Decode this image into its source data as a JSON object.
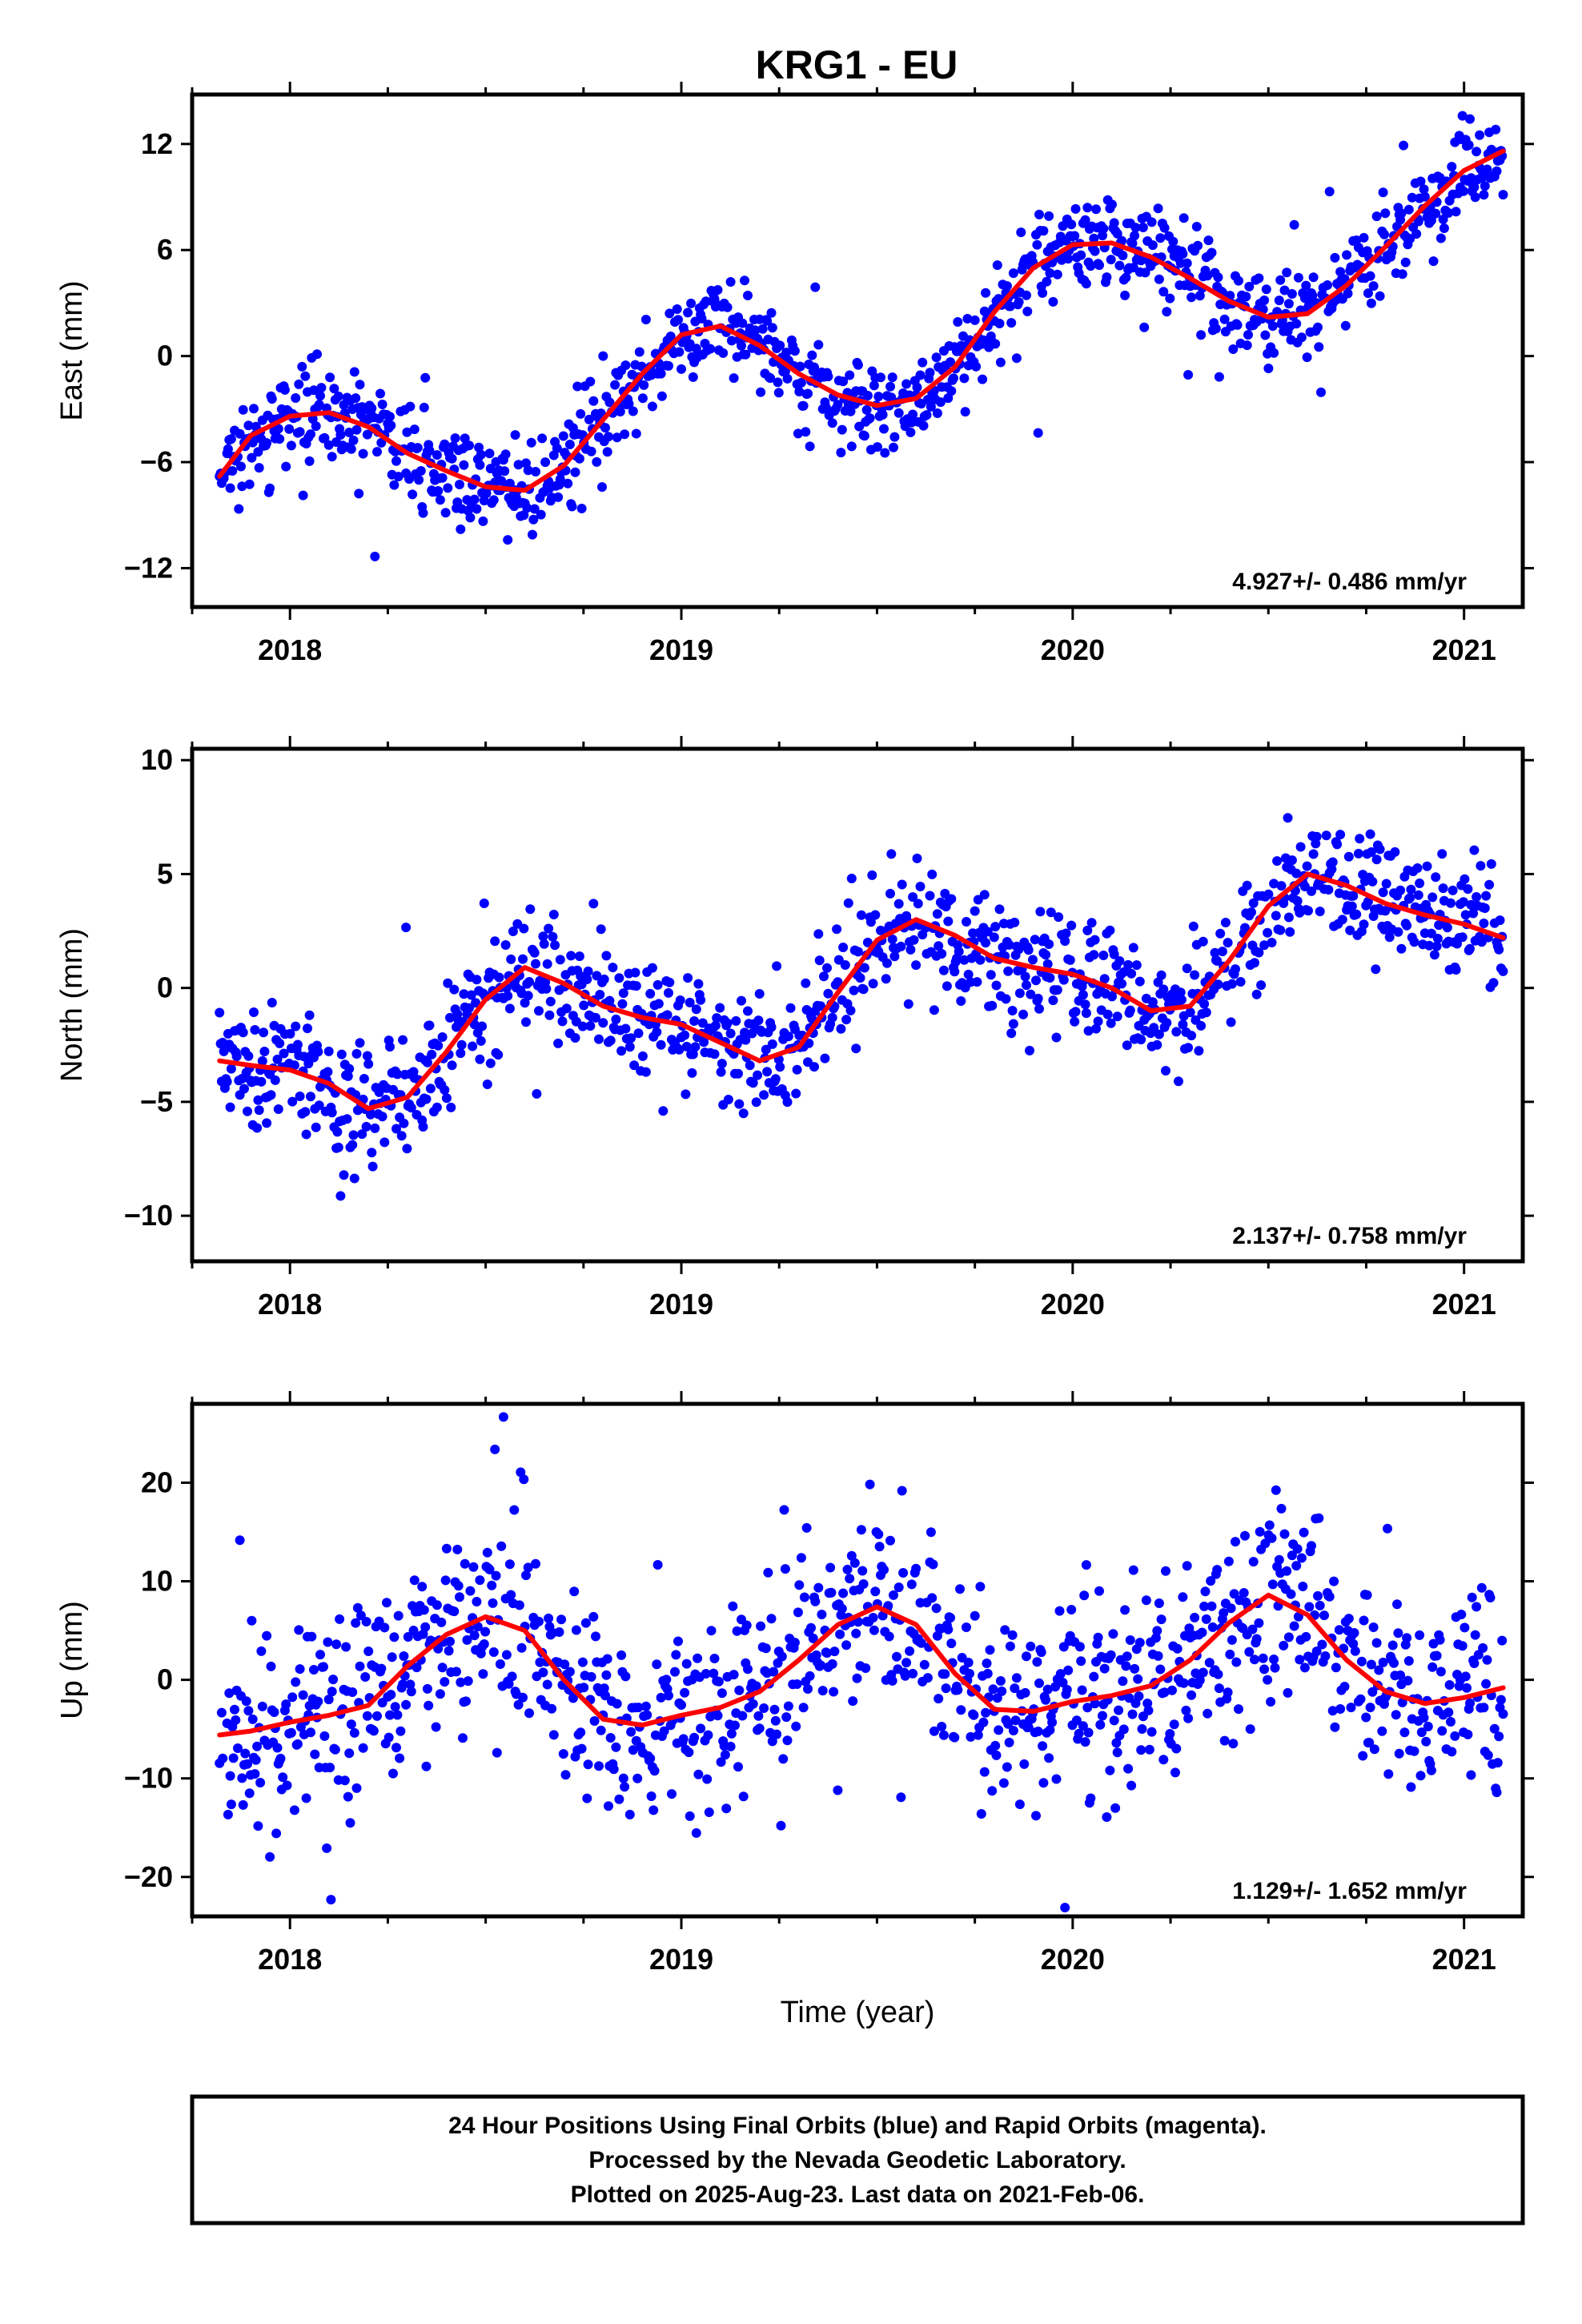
{
  "title": "KRG1 - EU",
  "footer": {
    "lines": [
      "24 Hour Positions Using Final Orbits (blue) and Rapid Orbits (magenta).",
      "Processed by the Nevada Geodetic Laboratory.",
      "Plotted on 2025-Aug-23. Last data on 2021-Feb-06."
    ]
  },
  "colors": {
    "points": "#0000ff",
    "fit": "#ff0000",
    "frame": "#000000"
  },
  "chart_data": [
    {
      "type": "scatter",
      "component": "east",
      "xlabel": "",
      "ylabel": "East (mm)",
      "xlim": [
        2017.75,
        2021.15
      ],
      "ylim": [
        -14.2,
        14.8
      ],
      "xticks": [
        2018,
        2019,
        2020,
        2021
      ],
      "yticks": [
        -12,
        -6,
        0,
        6,
        12
      ],
      "rate_label": "4.927+/- 0.486 mm/yr",
      "grid": false,
      "series": [
        {
          "style": "points",
          "x": [
            2017.82,
            2017.9,
            2018.0,
            2018.1,
            2018.2,
            2018.3,
            2018.4,
            2018.5,
            2018.6,
            2018.7,
            2018.8,
            2018.9,
            2019.0,
            2019.1,
            2019.2,
            2019.3,
            2019.4,
            2019.5,
            2019.6,
            2019.7,
            2019.8,
            2019.9,
            2020.0,
            2020.1,
            2020.2,
            2020.3,
            2020.4,
            2020.5,
            2020.6,
            2020.7,
            2020.8,
            2020.9,
            2021.0,
            2021.1
          ],
          "y": [
            -6.8,
            -4.5,
            -3.4,
            -3.2,
            -4.0,
            -5.5,
            -6.5,
            -7.4,
            -7.6,
            -6.2,
            -3.6,
            -1.0,
            1.2,
            1.7,
            0.6,
            -1.0,
            -2.2,
            -2.8,
            -2.4,
            -0.6,
            2.5,
            5.0,
            6.3,
            6.4,
            5.6,
            4.4,
            3.1,
            2.2,
            2.4,
            4.0,
            6.2,
            8.5,
            10.5,
            11.6
          ]
        },
        {
          "style": "line",
          "x": [
            2017.82,
            2017.9,
            2018.0,
            2018.1,
            2018.2,
            2018.3,
            2018.4,
            2018.5,
            2018.6,
            2018.7,
            2018.8,
            2018.9,
            2019.0,
            2019.1,
            2019.2,
            2019.3,
            2019.4,
            2019.5,
            2019.6,
            2019.7,
            2019.8,
            2019.9,
            2020.0,
            2020.1,
            2020.2,
            2020.3,
            2020.4,
            2020.5,
            2020.6,
            2020.7,
            2020.8,
            2020.9,
            2021.0,
            2021.1
          ],
          "y": [
            -6.8,
            -4.5,
            -3.4,
            -3.2,
            -4.0,
            -5.5,
            -6.5,
            -7.4,
            -7.6,
            -6.2,
            -3.6,
            -1.0,
            1.2,
            1.7,
            0.6,
            -1.0,
            -2.2,
            -2.8,
            -2.4,
            -0.6,
            2.5,
            5.0,
            6.3,
            6.4,
            5.6,
            4.4,
            3.1,
            2.2,
            2.4,
            4.0,
            6.2,
            8.5,
            10.5,
            11.6
          ]
        }
      ],
      "scatter_spread": 1.3
    },
    {
      "type": "scatter",
      "component": "north",
      "xlabel": "",
      "ylabel": "North (mm)",
      "xlim": [
        2017.75,
        2021.15
      ],
      "ylim": [
        -12,
        10.5
      ],
      "xticks": [
        2018,
        2019,
        2020,
        2021
      ],
      "yticks": [
        -10,
        -5,
        0,
        5,
        10
      ],
      "rate_label": "2.137+/- 0.758 mm/yr",
      "grid": false,
      "series": [
        {
          "style": "points",
          "x": [
            2017.82,
            2017.9,
            2018.0,
            2018.1,
            2018.2,
            2018.3,
            2018.4,
            2018.5,
            2018.6,
            2018.7,
            2018.8,
            2018.9,
            2019.0,
            2019.1,
            2019.2,
            2019.3,
            2019.4,
            2019.5,
            2019.6,
            2019.7,
            2019.8,
            2019.9,
            2020.0,
            2020.1,
            2020.2,
            2020.3,
            2020.4,
            2020.5,
            2020.6,
            2020.7,
            2020.8,
            2020.9,
            2021.0,
            2021.1
          ],
          "y": [
            -3.2,
            -3.4,
            -3.6,
            -4.2,
            -5.3,
            -4.8,
            -2.8,
            -0.5,
            0.9,
            0.2,
            -0.8,
            -1.3,
            -1.6,
            -2.4,
            -3.2,
            -2.6,
            -0.2,
            2.1,
            3.0,
            2.3,
            1.3,
            0.9,
            0.6,
            0.0,
            -1.0,
            -0.8,
            1.2,
            3.6,
            5.0,
            4.5,
            3.7,
            3.2,
            2.8,
            2.2
          ]
        },
        {
          "style": "line",
          "x": [
            2017.82,
            2017.9,
            2018.0,
            2018.1,
            2018.2,
            2018.3,
            2018.4,
            2018.5,
            2018.6,
            2018.7,
            2018.8,
            2018.9,
            2019.0,
            2019.1,
            2019.2,
            2019.3,
            2019.4,
            2019.5,
            2019.6,
            2019.7,
            2019.8,
            2019.9,
            2020.0,
            2020.1,
            2020.2,
            2020.3,
            2020.4,
            2020.5,
            2020.6,
            2020.7,
            2020.8,
            2020.9,
            2021.0,
            2021.1
          ],
          "y": [
            -3.2,
            -3.4,
            -3.6,
            -4.2,
            -5.3,
            -4.8,
            -2.8,
            -0.5,
            0.9,
            0.2,
            -0.8,
            -1.3,
            -1.6,
            -2.4,
            -3.2,
            -2.6,
            -0.2,
            2.1,
            3.0,
            2.3,
            1.3,
            0.9,
            0.6,
            0.0,
            -1.0,
            -0.8,
            1.2,
            3.6,
            5.0,
            4.5,
            3.7,
            3.2,
            2.8,
            2.2
          ]
        }
      ],
      "scatter_spread": 1.3
    },
    {
      "type": "scatter",
      "component": "up",
      "xlabel": "Time (year)",
      "ylabel": "Up (mm)",
      "xlim": [
        2017.75,
        2021.15
      ],
      "ylim": [
        -24,
        28
      ],
      "xticks": [
        2018,
        2019,
        2020,
        2021
      ],
      "yticks": [
        -20,
        -10,
        0,
        10,
        20
      ],
      "rate_label": "1.129+/- 1.652 mm/yr",
      "grid": false,
      "series": [
        {
          "style": "points",
          "x": [
            2017.82,
            2017.9,
            2018.0,
            2018.1,
            2018.2,
            2018.3,
            2018.4,
            2018.5,
            2018.6,
            2018.7,
            2018.8,
            2018.9,
            2019.0,
            2019.1,
            2019.2,
            2019.3,
            2019.4,
            2019.5,
            2019.6,
            2019.7,
            2019.8,
            2019.9,
            2020.0,
            2020.1,
            2020.2,
            2020.3,
            2020.4,
            2020.5,
            2020.6,
            2020.7,
            2020.8,
            2020.9,
            2021.0,
            2021.1
          ],
          "y": [
            -5.6,
            -5.2,
            -4.3,
            -3.6,
            -2.6,
            1.4,
            4.6,
            6.4,
            5.0,
            0.0,
            -4.0,
            -4.6,
            -3.6,
            -2.8,
            -1.2,
            2.0,
            5.6,
            7.4,
            5.6,
            0.6,
            -3.0,
            -3.2,
            -2.2,
            -1.6,
            -0.6,
            2.0,
            5.8,
            8.6,
            6.6,
            2.0,
            -1.2,
            -2.4,
            -1.8,
            -0.8
          ]
        },
        {
          "style": "line",
          "x": [
            2017.82,
            2017.9,
            2018.0,
            2018.1,
            2018.2,
            2018.3,
            2018.4,
            2018.5,
            2018.6,
            2018.7,
            2018.8,
            2018.9,
            2019.0,
            2019.1,
            2019.2,
            2019.3,
            2019.4,
            2019.5,
            2019.6,
            2019.7,
            2019.8,
            2019.9,
            2020.0,
            2020.1,
            2020.2,
            2020.3,
            2020.4,
            2020.5,
            2020.6,
            2020.7,
            2020.8,
            2020.9,
            2021.0,
            2021.1
          ],
          "y": [
            -5.6,
            -5.2,
            -4.3,
            -3.6,
            -2.6,
            1.4,
            4.6,
            6.4,
            5.0,
            0.0,
            -4.0,
            -4.6,
            -3.6,
            -2.8,
            -1.2,
            2.0,
            5.6,
            7.4,
            5.6,
            0.6,
            -3.0,
            -3.2,
            -2.2,
            -1.6,
            -0.6,
            2.0,
            5.8,
            8.6,
            6.6,
            2.0,
            -1.2,
            -2.4,
            -1.8,
            -0.8
          ]
        }
      ],
      "scatter_spread": 5.0
    }
  ]
}
